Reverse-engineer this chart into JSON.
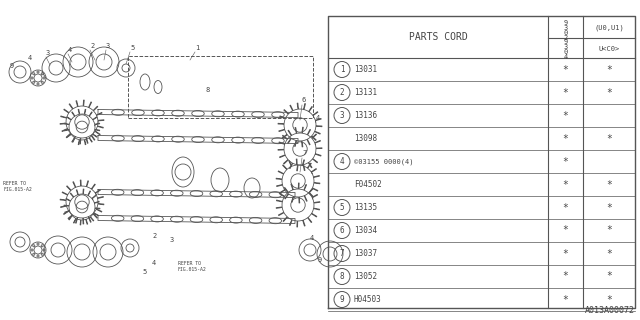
{
  "bg_color": "#ffffff",
  "title": "PARTS CORD",
  "footer": "A013A00072",
  "line_color": "#555555",
  "text_color": "#444444",
  "table_rows": [
    {
      "num": "1",
      "part": "13031",
      "c1": "*",
      "c2": "*"
    },
    {
      "num": "2",
      "part": "13131",
      "c1": "*",
      "c2": "*"
    },
    {
      "num": "3",
      "part": "13136",
      "c1": "*",
      "c2": ""
    },
    {
      "num": "",
      "part": "13098",
      "c1": "*",
      "c2": "*"
    },
    {
      "num": "4",
      "part": "©03155 0000(4)",
      "c1": "*",
      "c2": ""
    },
    {
      "num": "",
      "part": "F04502",
      "c1": "*",
      "c2": "*"
    },
    {
      "num": "5",
      "part": "13135",
      "c1": "*",
      "c2": "*"
    },
    {
      "num": "6",
      "part": "13034",
      "c1": "*",
      "c2": "*"
    },
    {
      "num": "7",
      "part": "13037",
      "c1": "*",
      "c2": "*"
    },
    {
      "num": "8",
      "part": "13052",
      "c1": "*",
      "c2": "*"
    },
    {
      "num": "9",
      "part": "H04503",
      "c1": "*",
      "c2": "*"
    }
  ]
}
